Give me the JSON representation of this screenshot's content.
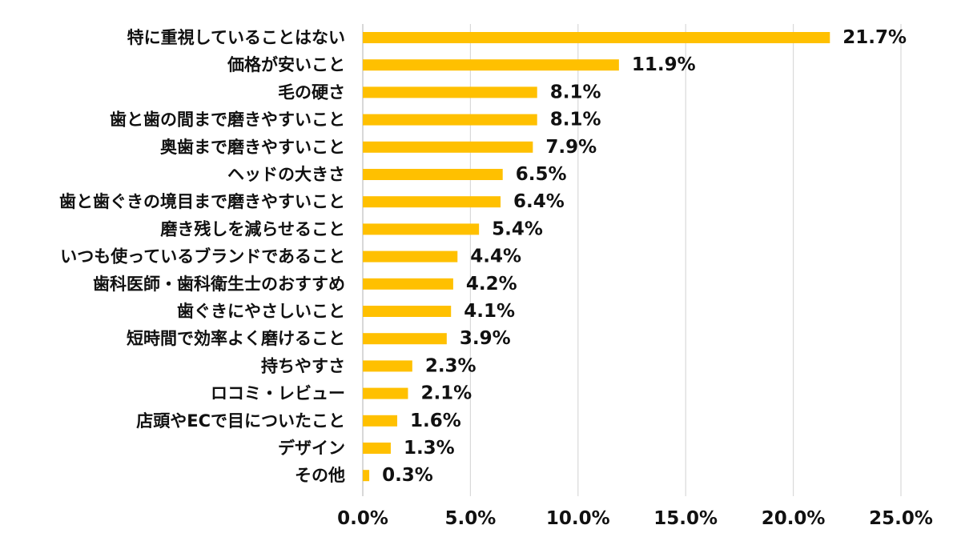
{
  "chart_data": {
    "type": "bar",
    "orientation": "horizontal",
    "title": "",
    "xlabel": "",
    "ylabel": "",
    "xlim": [
      0,
      25
    ],
    "x_ticks": [
      0,
      5,
      10,
      15,
      20,
      25
    ],
    "x_tick_labels": [
      "0.0%",
      "5.0%",
      "10.0%",
      "15.0%",
      "20.0%",
      "25.0%"
    ],
    "grid": "vertical",
    "bar_color": "#ffc000",
    "categories": [
      "特に重視していることはない",
      "価格が安いこと",
      "毛の硬さ",
      "歯と歯の間まで磨きやすいこと",
      "奥歯まで磨きやすいこと",
      "ヘッドの大きさ",
      "歯と歯ぐきの境目まで磨きやすいこと",
      "磨き残しを減らせること",
      "いつも使っているブランドであること",
      "歯科医師・歯科衛生士のおすすめ",
      "歯ぐきにやさしいこと",
      "短時間で効率よく磨けること",
      "持ちやすさ",
      "ロコミ・レビュー",
      "店頭やECで目についたこと",
      "デザイン",
      "その他"
    ],
    "values": [
      21.7,
      11.9,
      8.1,
      8.1,
      7.9,
      6.5,
      6.4,
      5.4,
      4.4,
      4.2,
      4.1,
      3.9,
      2.3,
      2.1,
      1.6,
      1.3,
      0.3
    ],
    "value_labels": [
      "21.7%",
      "11.9%",
      "8.1%",
      "8.1%",
      "7.9%",
      "6.5%",
      "6.4%",
      "5.4%",
      "4.4%",
      "4.2%",
      "4.1%",
      "3.9%",
      "2.3%",
      "2.1%",
      "1.6%",
      "1.3%",
      "0.3%"
    ]
  }
}
